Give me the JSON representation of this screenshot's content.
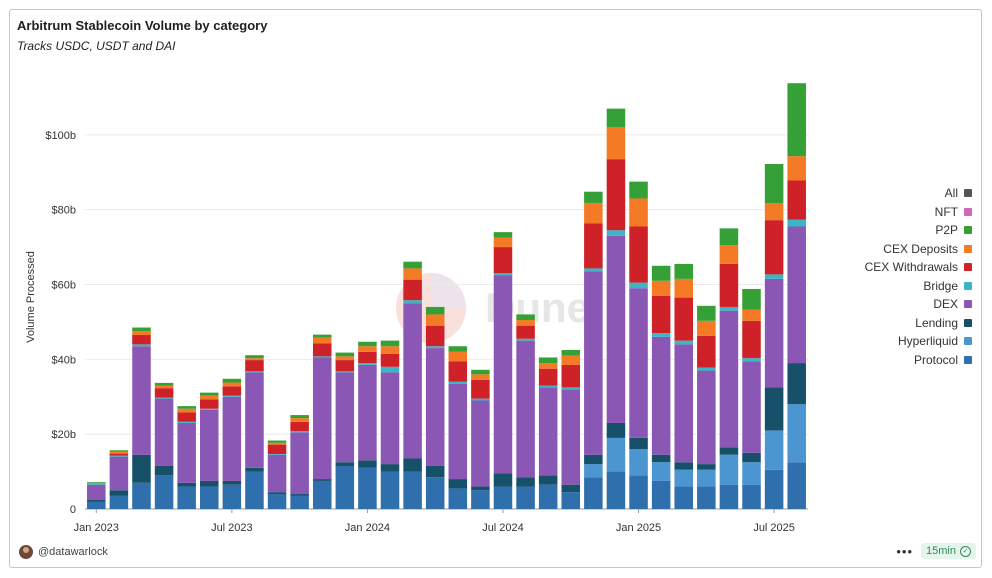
{
  "header": {
    "title": "Arbitrum Stablecoin Volume by category",
    "subtitle": "Tracks USDC, USDT and DAI"
  },
  "watermark": "Dune",
  "footer": {
    "username": "@datawarlock",
    "more_label": "•••",
    "refresh_label": "15min",
    "check_icon": "✓"
  },
  "colors": {
    "Protocol": "#2f6fae",
    "Hyperliquid": "#4b95d1",
    "Lending": "#175069",
    "DEX": "#8b57b5",
    "Bridge": "#3cb6c6",
    "CEX Withdrawals": "#cf2128",
    "CEX Deposits": "#f47a25",
    "P2P": "#35a035",
    "NFT": "#d468b8",
    "All": "#555555"
  },
  "chart_data": {
    "type": "bar",
    "stacked": true,
    "title": "Arbitrum Stablecoin Volume by category",
    "subtitle": "Tracks USDC, USDT and DAI",
    "xlabel": "",
    "ylabel": "Volume Processed",
    "ylim": [
      0,
      120
    ],
    "yticks": [
      0,
      20,
      40,
      60,
      80,
      100
    ],
    "ytick_labels": [
      "0",
      "$20b",
      "$40b",
      "$60b",
      "$80b",
      "$100b"
    ],
    "categories": [
      "Jan 2023",
      "Feb 2023",
      "Mar 2023",
      "Apr 2023",
      "May 2023",
      "Jun 2023",
      "Jul 2023",
      "Aug 2023",
      "Sep 2023",
      "Oct 2023",
      "Nov 2023",
      "Dec 2023",
      "Jan 2024",
      "Feb 2024",
      "Mar 2024",
      "Apr 2024",
      "May 2024",
      "Jun 2024",
      "Jul 2024",
      "Aug 2024",
      "Sep 2024",
      "Oct 2024",
      "Nov 2024",
      "Dec 2024",
      "Jan 2025",
      "Feb 2025",
      "Mar 2025",
      "Apr 2025",
      "May 2025",
      "Jun 2025",
      "Jul 2025",
      "Aug 2025"
    ],
    "xtick_labels": [
      {
        "index": 0,
        "label": "Jan 2023"
      },
      {
        "index": 6,
        "label": "Jul 2023"
      },
      {
        "index": 12,
        "label": "Jan 2024"
      },
      {
        "index": 18,
        "label": "Jul 2024"
      },
      {
        "index": 24,
        "label": "Jan 2025"
      },
      {
        "index": 30,
        "label": "Jul 2025"
      }
    ],
    "legend": [
      "All",
      "NFT",
      "P2P",
      "CEX Deposits",
      "CEX Withdrawals",
      "Bridge",
      "DEX",
      "Lending",
      "Hyperliquid",
      "Protocol"
    ],
    "legend_position": "right",
    "series": [
      {
        "name": "Protocol",
        "values": [
          2,
          3.5,
          7,
          9,
          6,
          6,
          6.5,
          10,
          4,
          3.5,
          7.5,
          11.5,
          11,
          10,
          10,
          8.5,
          5.5,
          5,
          6,
          6,
          6.5,
          4.5,
          8.5,
          10,
          9,
          7.5,
          6,
          6,
          6.5,
          6.5,
          10.5,
          12.5
        ]
      },
      {
        "name": "Hyperliquid",
        "values": [
          0,
          0,
          0,
          0,
          0,
          0,
          0,
          0,
          0,
          0,
          0,
          0,
          0,
          0,
          0,
          0,
          0,
          0,
          0,
          0,
          0,
          0,
          3.5,
          9,
          7,
          5,
          4.5,
          4.5,
          8,
          6,
          10.5,
          15.5
        ]
      },
      {
        "name": "Lending",
        "values": [
          0.5,
          1.5,
          7.5,
          2.5,
          1,
          1.5,
          1,
          1,
          0.5,
          0.5,
          0.5,
          1,
          2,
          2,
          3.5,
          3,
          2.5,
          1,
          3.5,
          2.5,
          2.5,
          2,
          2.5,
          4,
          3,
          2,
          2,
          1.5,
          2,
          2.5,
          11.5,
          11
        ]
      },
      {
        "name": "DEX",
        "values": [
          4,
          9,
          29,
          18,
          16,
          19,
          22.5,
          25.5,
          10,
          16.5,
          32.5,
          24,
          25.5,
          24.5,
          41.5,
          31.5,
          25.5,
          23,
          53,
          36.5,
          23.5,
          25.5,
          49,
          50,
          40,
          31.5,
          31.5,
          25,
          36.5,
          24.5,
          29,
          36.5
        ]
      },
      {
        "name": "Bridge",
        "values": [
          0.2,
          0.3,
          0.5,
          0.3,
          0.3,
          0.3,
          0.3,
          0.3,
          0.2,
          0.3,
          0.3,
          0.3,
          0.5,
          1.5,
          0.8,
          0.5,
          0.5,
          0.5,
          0.5,
          0.5,
          0.5,
          0.5,
          0.8,
          1.5,
          1.5,
          1,
          1,
          0.8,
          1,
          0.8,
          1.2,
          1.8
        ]
      },
      {
        "name": "CEX Withdrawals",
        "values": [
          0,
          0.5,
          2.5,
          2.5,
          2.5,
          2.5,
          2.5,
          3,
          2.5,
          2.5,
          3.5,
          3,
          3,
          3.5,
          5.5,
          5.5,
          5.5,
          5,
          7,
          3.5,
          4.5,
          6,
          12,
          19,
          15,
          10,
          11.5,
          8.5,
          11.5,
          10,
          14.5,
          10.5
        ]
      },
      {
        "name": "CEX Deposits",
        "values": [
          0.3,
          0.5,
          1,
          0.7,
          1,
          1,
          1,
          0.5,
          0.5,
          1,
          1.5,
          1,
          1.5,
          2,
          3,
          3,
          2.5,
          1.5,
          2.5,
          1.5,
          1.5,
          2.5,
          5.5,
          8.5,
          7.5,
          4,
          5,
          4,
          5,
          3,
          4.5,
          6.5
        ]
      },
      {
        "name": "P2P",
        "values": [
          0.2,
          0.4,
          1,
          0.7,
          0.7,
          0.8,
          1,
          0.8,
          0.6,
          0.8,
          0.8,
          1,
          1.2,
          1.5,
          1.8,
          2,
          1.5,
          1.2,
          1.5,
          1.5,
          1.5,
          1.5,
          3,
          5,
          4.5,
          4,
          4,
          4,
          4.5,
          5.5,
          10.5,
          19.5
        ]
      },
      {
        "name": "NFT",
        "values": [
          0,
          0,
          0,
          0,
          0,
          0,
          0,
          0,
          0,
          0,
          0,
          0,
          0,
          0,
          0,
          0,
          0,
          0,
          0,
          0,
          0,
          0,
          0,
          0,
          0,
          0,
          0,
          0,
          0,
          0,
          0,
          0
        ]
      },
      {
        "name": "All",
        "values": [
          0,
          0,
          0,
          0,
          0,
          0,
          0,
          0,
          0,
          0,
          0,
          0,
          0,
          0,
          0,
          0,
          0,
          0,
          0,
          0,
          0,
          0,
          0,
          0,
          0,
          0,
          0,
          0,
          0,
          0,
          0,
          0
        ]
      }
    ]
  }
}
